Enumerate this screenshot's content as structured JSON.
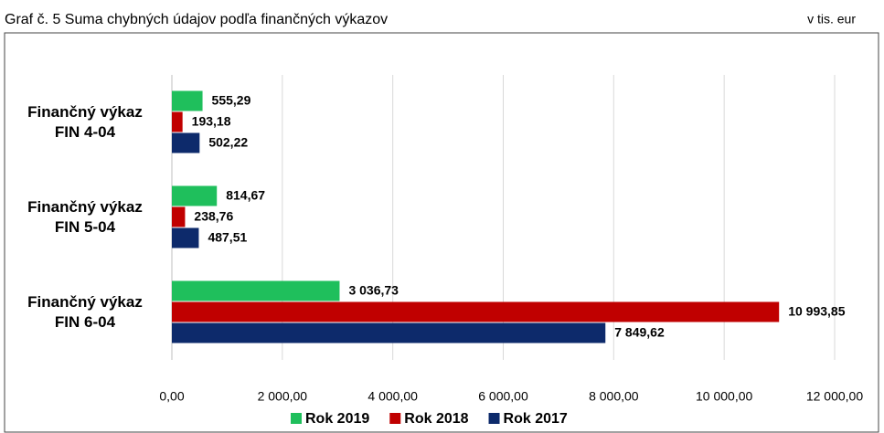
{
  "chart_data": {
    "type": "hbar",
    "title": "Graf č. 5 Suma chybných údajov podľa finančných výkazov",
    "unit": "v tis. eur",
    "categories": [
      "Finančný výkaz\nFIN 4-04",
      "Finančný výkaz\nFIN 5-04",
      "Finančný výkaz\nFIN 6-04"
    ],
    "series": [
      {
        "name": "Rok 2019",
        "color": "#1fbf5c",
        "values": [
          555.29,
          814.67,
          3036.73
        ],
        "value_labels": [
          "555,29",
          "814,67",
          "3 036,73"
        ]
      },
      {
        "name": "Rok 2018",
        "color": "#c00000",
        "values": [
          193.18,
          238.76,
          10993.85
        ],
        "value_labels": [
          "193,18",
          "238,76",
          "10 993,85"
        ]
      },
      {
        "name": "Rok 2017",
        "color": "#0d2a6b",
        "values": [
          502.22,
          487.51,
          7849.62
        ],
        "value_labels": [
          "502,22",
          "487,51",
          "7 849,62"
        ]
      }
    ],
    "xlim": [
      0,
      12000
    ],
    "xticks": [
      {
        "value": 0,
        "label": "0,00"
      },
      {
        "value": 2000,
        "label": "2 000,00"
      },
      {
        "value": 4000,
        "label": "4 000,00"
      },
      {
        "value": 6000,
        "label": "6 000,00"
      },
      {
        "value": 8000,
        "label": "8 000,00"
      },
      {
        "value": 10000,
        "label": "10 000,00"
      },
      {
        "value": 12000,
        "label": "12 000,00"
      }
    ],
    "grid": true,
    "legend": "bottom"
  }
}
